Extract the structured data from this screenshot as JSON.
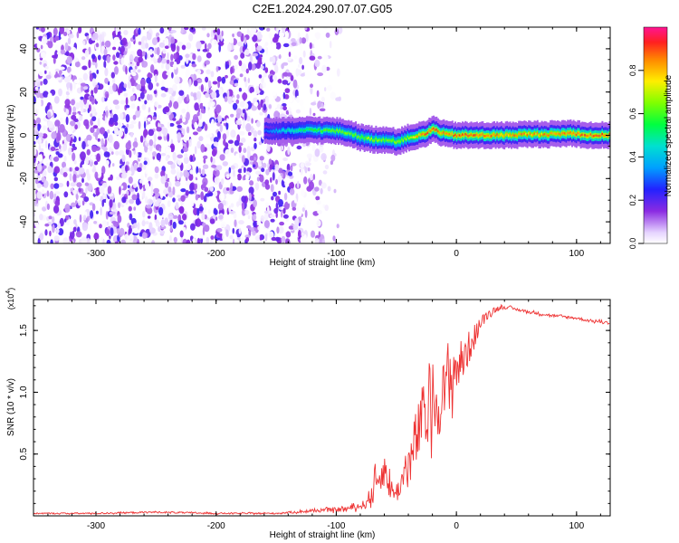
{
  "title": "C2E1.2024.290.07.07.G05",
  "chart_data": [
    {
      "type": "heatmap",
      "name": "spectrogram",
      "xlabel": "Height of straight line (km)",
      "ylabel": "Frequency (Hz)",
      "xlim": [
        -352,
        128
      ],
      "ylim": [
        -50,
        50
      ],
      "xticks": [
        -300,
        -200,
        -100,
        0,
        100
      ],
      "xtick_labels": [
        "-300",
        "-200",
        "-100",
        "0",
        "100"
      ],
      "yticks": [
        -40,
        -20,
        0,
        20,
        40
      ],
      "ytick_labels": [
        "-40",
        "-20",
        "0",
        "20",
        "40"
      ],
      "noise_region": {
        "x_range": [
          -352,
          -96
        ],
        "description_level": 0.15
      },
      "ridge": {
        "x": [
          -160,
          -140,
          -120,
          -100,
          -90,
          -80,
          -70,
          -60,
          -50,
          -40,
          -30,
          -25,
          -20,
          -10,
          0,
          20,
          40,
          60,
          80,
          95,
          110,
          128
        ],
        "freq": [
          2,
          2,
          2.5,
          2,
          1,
          -1,
          -2,
          -2,
          -3,
          -1,
          0,
          1,
          3,
          0.5,
          0,
          0,
          0,
          0.5,
          0.5,
          1,
          0,
          0
        ],
        "amplitude": [
          0.3,
          0.45,
          0.55,
          0.6,
          0.6,
          0.6,
          0.65,
          0.6,
          0.65,
          0.65,
          0.8,
          0.85,
          0.85,
          0.8,
          0.85,
          0.85,
          0.8,
          0.8,
          0.8,
          0.85,
          0.85,
          0.85
        ]
      },
      "colorbar": {
        "label": "Normalized spectral amplitude",
        "ticks": [
          0.0,
          0.2,
          0.4,
          0.6,
          0.8
        ],
        "tick_labels": [
          "0.0",
          "0.2",
          "0.4",
          "0.6",
          "0.8"
        ],
        "range": [
          0,
          1
        ]
      }
    },
    {
      "type": "line",
      "name": "snr",
      "xlabel": "Height of straight line (km)",
      "ylabel": "SNR (10 * v/v)",
      "multiplier_label": "(x10",
      "multiplier_exp": "4",
      "multiplier_close": ")",
      "xlim": [
        -352,
        128
      ],
      "ylim": [
        0,
        1.75
      ],
      "xticks": [
        -300,
        -200,
        -100,
        0,
        100
      ],
      "xtick_labels": [
        "-300",
        "-200",
        "-100",
        "0",
        "100"
      ],
      "yticks": [
        0.5,
        1.0,
        1.5
      ],
      "ytick_labels": [
        "0.5",
        "1.0",
        "1.5"
      ],
      "color": "#ee3333",
      "series": [
        {
          "name": "SNR",
          "x": [
            -352,
            -300,
            -250,
            -200,
            -150,
            -120,
            -100,
            -90,
            -80,
            -75,
            -70,
            -65,
            -60,
            -55,
            -50,
            -45,
            -40,
            -35,
            -30,
            -25,
            -20,
            -15,
            -10,
            -5,
            0,
            5,
            10,
            15,
            20,
            25,
            30,
            35,
            40,
            50,
            60,
            80,
            100,
            110,
            120,
            128
          ],
          "values": [
            0.02,
            0.02,
            0.03,
            0.02,
            0.02,
            0.04,
            0.05,
            0.06,
            0.08,
            0.1,
            0.2,
            0.3,
            0.38,
            0.22,
            0.18,
            0.3,
            0.4,
            0.55,
            0.75,
            0.8,
            0.95,
            0.9,
            1.0,
            1.12,
            1.2,
            1.25,
            1.35,
            1.45,
            1.55,
            1.62,
            1.66,
            1.68,
            1.69,
            1.67,
            1.65,
            1.62,
            1.6,
            1.58,
            1.57,
            1.56
          ],
          "noise": [
            0.005,
            0.006,
            0.007,
            0.006,
            0.006,
            0.012,
            0.018,
            0.02,
            0.03,
            0.04,
            0.1,
            0.12,
            0.14,
            0.1,
            0.08,
            0.12,
            0.18,
            0.25,
            0.28,
            0.3,
            0.32,
            0.25,
            0.28,
            0.25,
            0.22,
            0.18,
            0.14,
            0.1,
            0.06,
            0.04,
            0.03,
            0.02,
            0.015,
            0.012,
            0.012,
            0.012,
            0.012,
            0.012,
            0.012,
            0.012
          ]
        }
      ]
    }
  ]
}
